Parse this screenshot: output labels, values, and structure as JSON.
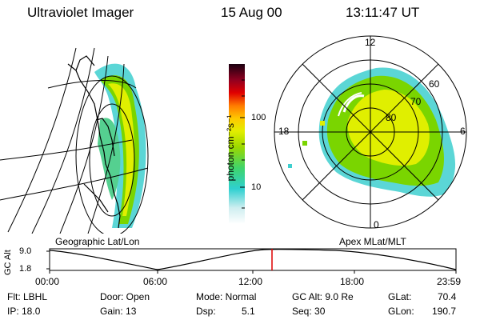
{
  "header": {
    "instrument": "Ultraviolet Imager",
    "date": "15 Aug 00",
    "time": "13:11:47 UT"
  },
  "panels": {
    "left_label": "Geographic Lat/Lon",
    "right_label": "Apex MLat/MLT"
  },
  "colorbar": {
    "unit_label": "photon cm⁻²s⁻¹",
    "ticks": [
      "100",
      "10"
    ]
  },
  "polar": {
    "mlt_labels": [
      "12",
      "18",
      "6",
      "0"
    ],
    "lat_labels": [
      "60",
      "70",
      "80"
    ]
  },
  "altitude_plot": {
    "ylabel": "GC Alt",
    "yticks": [
      "9.0",
      "1.8"
    ],
    "xticks": [
      "00:00",
      "06:00",
      "12:00",
      "18:00",
      "23:59"
    ],
    "marker_time": "13:11"
  },
  "info": {
    "flt": "Flt: LBHL",
    "ip": "IP: 18.0",
    "door": "Door: Open",
    "gain": "Gain: 13",
    "mode": "Mode: Normal",
    "dsp": "Dsp:",
    "dsp_val": "5.1",
    "gcalt": "GC Alt: 9.0 Re",
    "seq": "Seq: 30",
    "glat_label": "GLat:",
    "glat_val": "70.4",
    "glon_label": "GLon:",
    "glon_val": "190.7"
  },
  "colors": {
    "marker": "#dd0000",
    "aurora_outer": "#3ecfcf",
    "aurora_mid": "#7ad500",
    "aurora_core": "#e0ef00"
  }
}
